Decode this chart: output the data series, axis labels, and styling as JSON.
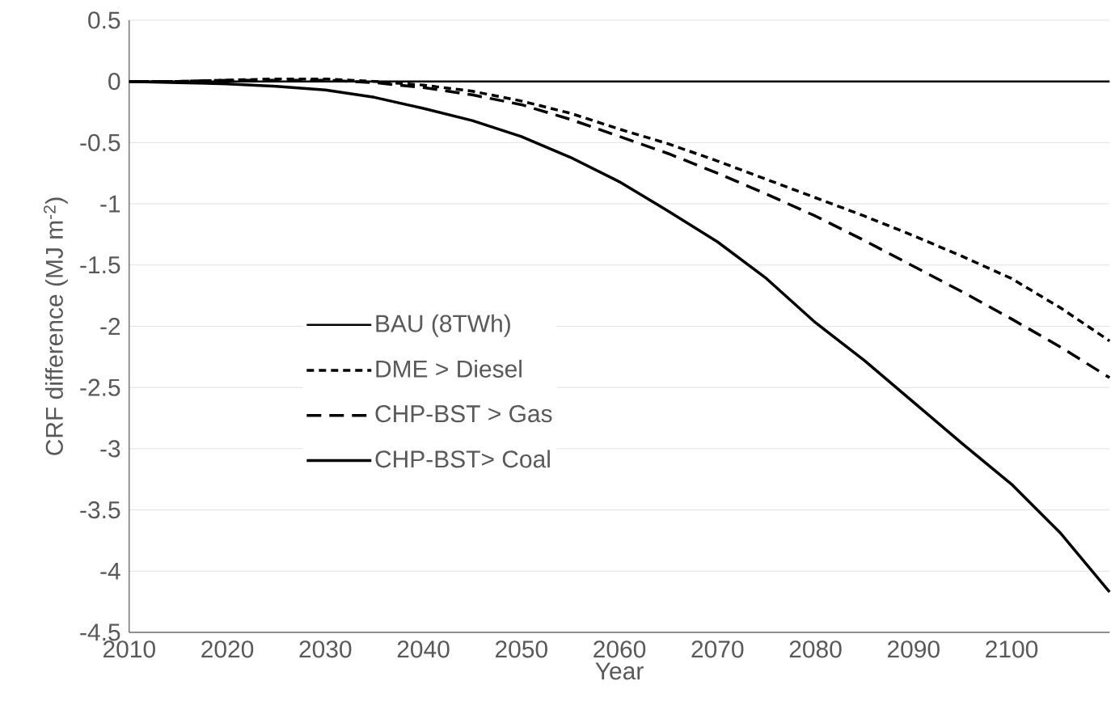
{
  "chart_data": {
    "type": "line",
    "xlabel": "Year",
    "ylabel": "CRF difference  (MJ m$^{-2}$)",
    "x": [
      2010,
      2015,
      2020,
      2025,
      2030,
      2035,
      2040,
      2045,
      2050,
      2055,
      2060,
      2065,
      2070,
      2075,
      2080,
      2085,
      2090,
      2095,
      2100,
      2105,
      2110
    ],
    "series": [
      {
        "name": "BAU (8TWh)",
        "color": "#000000",
        "line_style": "solid",
        "values": [
          0,
          0,
          0,
          0,
          0,
          0,
          0,
          0,
          0,
          0,
          0,
          0,
          0,
          0,
          0,
          0,
          0,
          0,
          0,
          0,
          0
        ]
      },
      {
        "name": "DME > Diesel",
        "color": "#000000",
        "line_style": "dotted",
        "values": [
          0,
          0,
          0.01,
          0.02,
          0.02,
          0,
          -0.03,
          -0.08,
          -0.16,
          -0.26,
          -0.39,
          -0.51,
          -0.65,
          -0.8,
          -0.95,
          -1.1,
          -1.26,
          -1.43,
          -1.61,
          -1.85,
          -2.12
        ]
      },
      {
        "name": "CHP-BST > Gas",
        "color": "#000000",
        "line_style": "dashed",
        "values": [
          0,
          0,
          0.01,
          0.01,
          0.01,
          -0.01,
          -0.05,
          -0.11,
          -0.19,
          -0.31,
          -0.45,
          -0.59,
          -0.75,
          -0.92,
          -1.1,
          -1.3,
          -1.51,
          -1.72,
          -1.94,
          -2.17,
          -2.42
        ]
      },
      {
        "name": "CHP-BST> Coal",
        "color": "#000000",
        "line_style": "solid",
        "values": [
          0,
          -0.01,
          -0.02,
          -0.04,
          -0.07,
          -0.13,
          -0.22,
          -0.32,
          -0.45,
          -0.62,
          -0.82,
          -1.06,
          -1.31,
          -1.61,
          -1.97,
          -2.28,
          -2.62,
          -2.96,
          -3.29,
          -3.69,
          -4.17
        ]
      }
    ],
    "xlim": [
      2010,
      2110
    ],
    "xticks": [
      2010,
      2020,
      2030,
      2040,
      2050,
      2060,
      2070,
      2080,
      2090,
      2100
    ],
    "ylim": [
      -4.5,
      0.5
    ],
    "yticks": [
      0.5,
      0,
      -0.5,
      -1,
      -1.5,
      -2,
      -2.5,
      -3,
      -3.5,
      -4,
      -4.5
    ],
    "grid": "y",
    "legend": "left",
    "marker": "none"
  }
}
